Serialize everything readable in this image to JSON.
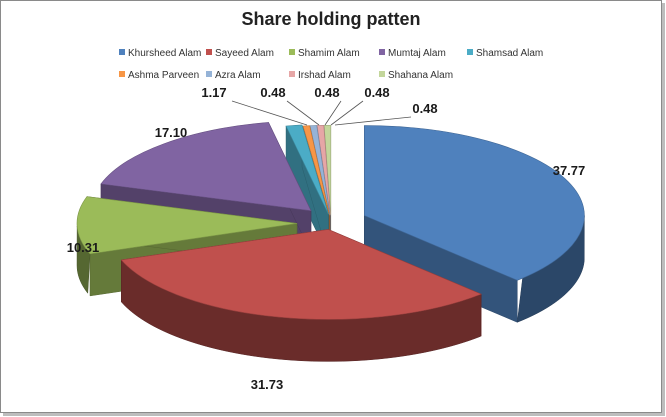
{
  "chart_data": {
    "type": "pie",
    "title": "Share holding patten",
    "categories": [
      "Khursheed Alam",
      "Sayeed Alam",
      "Shamim Alam",
      "Mumtaj Alam",
      "Shamsad Alam",
      "Ashma Parveen",
      "Azra Alam",
      "Irshad Alam",
      "Shahana Alam"
    ],
    "values": [
      37.77,
      31.73,
      10.31,
      17.1,
      1.17,
      0.48,
      0.48,
      0.48,
      0.48
    ],
    "labels": [
      "37.77",
      "31.73",
      "10.31",
      "17.10",
      "1.17",
      "0.48",
      "0.48",
      "0.48",
      "0.48"
    ],
    "colors": [
      "#4f81bd",
      "#c0504d",
      "#9bbb59",
      "#8064a2",
      "#4bacc6",
      "#f79646",
      "#95b3d7",
      "#e6a6a6",
      "#c3d69b"
    ],
    "legend_position": "top",
    "style": "3d-exploded"
  }
}
